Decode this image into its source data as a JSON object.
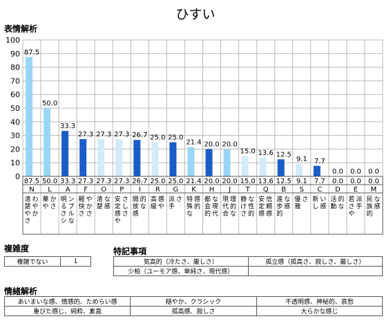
{
  "page_title": "ひすい",
  "section_emotion_analysis": "表情解析",
  "section_complexity": "複雑度",
  "section_special_notes": "特記事項",
  "section_mood_analysis": "情緒解析",
  "complexity": {
    "label": "複雑でない",
    "value": "1"
  },
  "special_notes": [
    "気高的（冷たさ、厳しさ）",
    "孤立感（孤高さ、寂しさ、厳しさ）",
    "少柏（ユーモア感、単純さ、現代感）"
  ],
  "mood_rows": [
    [
      "あいまいな感、情感的、ためらい感",
      "穏やか、クラシック",
      "不透明感、神秘的、哀愁"
    ],
    [
      "重びた感じ、純粋、素直",
      "孤高感、寂しさ",
      "大らかな感じ"
    ]
  ],
  "colors": {
    "light": "#99d6f5",
    "dark": "#1a5dc9",
    "pale": "#d2ebf9",
    "grid": "#b8b8b8"
  },
  "chart_data": {
    "type": "bar",
    "ylim": [
      0,
      100
    ],
    "yticks": [
      0,
      10,
      20,
      30,
      40,
      50,
      60,
      70,
      80,
      90,
      100
    ],
    "grid": true,
    "categories": [
      "N",
      "L",
      "A",
      "F",
      "O",
      "P",
      "I",
      "R",
      "G",
      "K",
      "H",
      "J",
      "T",
      "Q",
      "B",
      "S",
      "C",
      "D",
      "E",
      "M"
    ],
    "values": [
      87.5,
      50.0,
      33.3,
      27.3,
      27.3,
      27.3,
      26.7,
      25.0,
      25.0,
      21.4,
      20.0,
      20.0,
      15.0,
      13.6,
      12.5,
      9.1,
      7.7,
      0.0,
      0.0,
      0.0
    ],
    "value_labels": [
      "87.5",
      "50.0",
      "33.3",
      "27.3",
      "27.3",
      "27.3",
      "26.7",
      "25.0",
      "25.0",
      "21.4",
      "20.0",
      "20.0",
      "15.0",
      "13.6",
      "12.5",
      "9.1",
      "7.7",
      "0.0",
      "0.0",
      "0.0"
    ],
    "bar_colors": [
      "light",
      "light",
      "dark",
      "dark",
      "pale",
      "pale",
      "dark",
      "pale",
      "dark",
      "light",
      "dark",
      "light",
      "pale",
      "pale",
      "dark",
      "pale",
      "dark",
      "light",
      "light",
      "light"
    ],
    "descriptors": [
      "清楚やさわやか",
      "華やかさ",
      "明るさシンプルな",
      "軽快さやかさ",
      "清楚な感",
      "安定感やさしさ",
      "開放感的な",
      "高級感や",
      "派手さ",
      "特殊な感的",
      "都会的な現代",
      "現代合理的な",
      "静けさな性的",
      "安定感信頼感",
      "進歩的な感",
      "優雅さ",
      "新しい感",
      "活動的な",
      "若さや派手",
      "民族的な感"
    ]
  }
}
